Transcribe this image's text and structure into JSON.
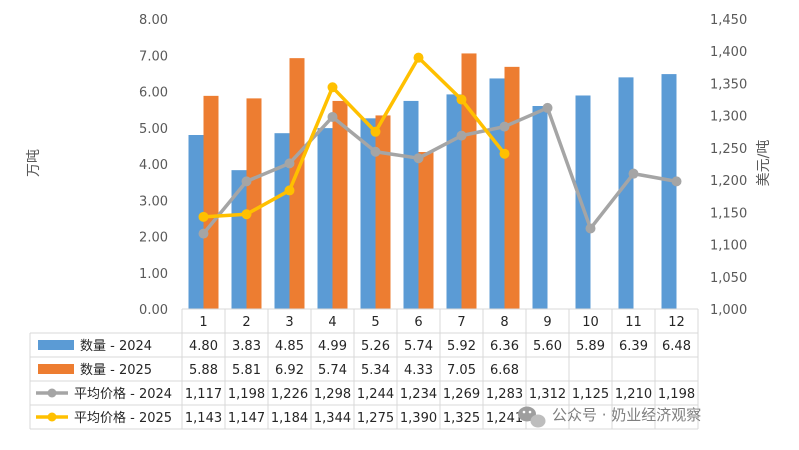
{
  "chart_data": {
    "type": "bar",
    "categories": [
      "1",
      "2",
      "3",
      "4",
      "5",
      "6",
      "7",
      "8",
      "9",
      "10",
      "11",
      "12"
    ],
    "left_axis": {
      "label": "万吨",
      "ylim": [
        0,
        8
      ],
      "ticks": [
        "0.00",
        "1.00",
        "2.00",
        "3.00",
        "4.00",
        "5.00",
        "6.00",
        "7.00",
        "8.00"
      ]
    },
    "right_axis": {
      "label": "美元/吨",
      "ylim": [
        1000,
        1450
      ],
      "ticks": [
        "1,000",
        "1,050",
        "1,100",
        "1,150",
        "1,200",
        "1,250",
        "1,300",
        "1,350",
        "1,400",
        "1,450"
      ]
    },
    "bar_series": [
      {
        "name": "数量 - 2024",
        "color": "#5b9bd5",
        "values": [
          4.8,
          3.83,
          4.85,
          4.99,
          5.26,
          5.74,
          5.92,
          6.36,
          5.6,
          5.89,
          6.39,
          6.48
        ],
        "labels": [
          "4.80",
          "3.83",
          "4.85",
          "4.99",
          "5.26",
          "5.74",
          "5.92",
          "6.36",
          "5.60",
          "5.89",
          "6.39",
          "6.48"
        ]
      },
      {
        "name": "数量 - 2025",
        "color": "#ed7d31",
        "values": [
          5.88,
          5.81,
          6.92,
          5.74,
          5.34,
          4.33,
          7.05,
          6.68,
          null,
          null,
          null,
          null
        ],
        "labels": [
          "5.88",
          "5.81",
          "6.92",
          "5.74",
          "5.34",
          "4.33",
          "7.05",
          "6.68",
          "",
          "",
          "",
          ""
        ]
      }
    ],
    "line_series": [
      {
        "name": "平均价格 - 2024",
        "color": "#a5a5a5",
        "values": [
          1117,
          1198,
          1226,
          1298,
          1244,
          1234,
          1269,
          1283,
          1312,
          1125,
          1210,
          1198
        ],
        "labels": [
          "1,117",
          "1,198",
          "1,226",
          "1,298",
          "1,244",
          "1,234",
          "1,269",
          "1,283",
          "1,312",
          "1,125",
          "1,210",
          "1,198"
        ]
      },
      {
        "name": "平均价格 - 2025",
        "color": "#ffc000",
        "values": [
          1143,
          1147,
          1184,
          1344,
          1275,
          1390,
          1325,
          1241,
          null,
          null,
          null,
          null
        ],
        "labels": [
          "1,143",
          "1,147",
          "1,184",
          "1,344",
          "1,275",
          "1,390",
          "1,325",
          "1,241",
          "",
          "",
          "",
          ""
        ]
      }
    ],
    "grid": false,
    "legend": "data-table"
  },
  "watermark": {
    "text": "公众号 · 奶业经济观察",
    "icon": "wechat-icon"
  }
}
